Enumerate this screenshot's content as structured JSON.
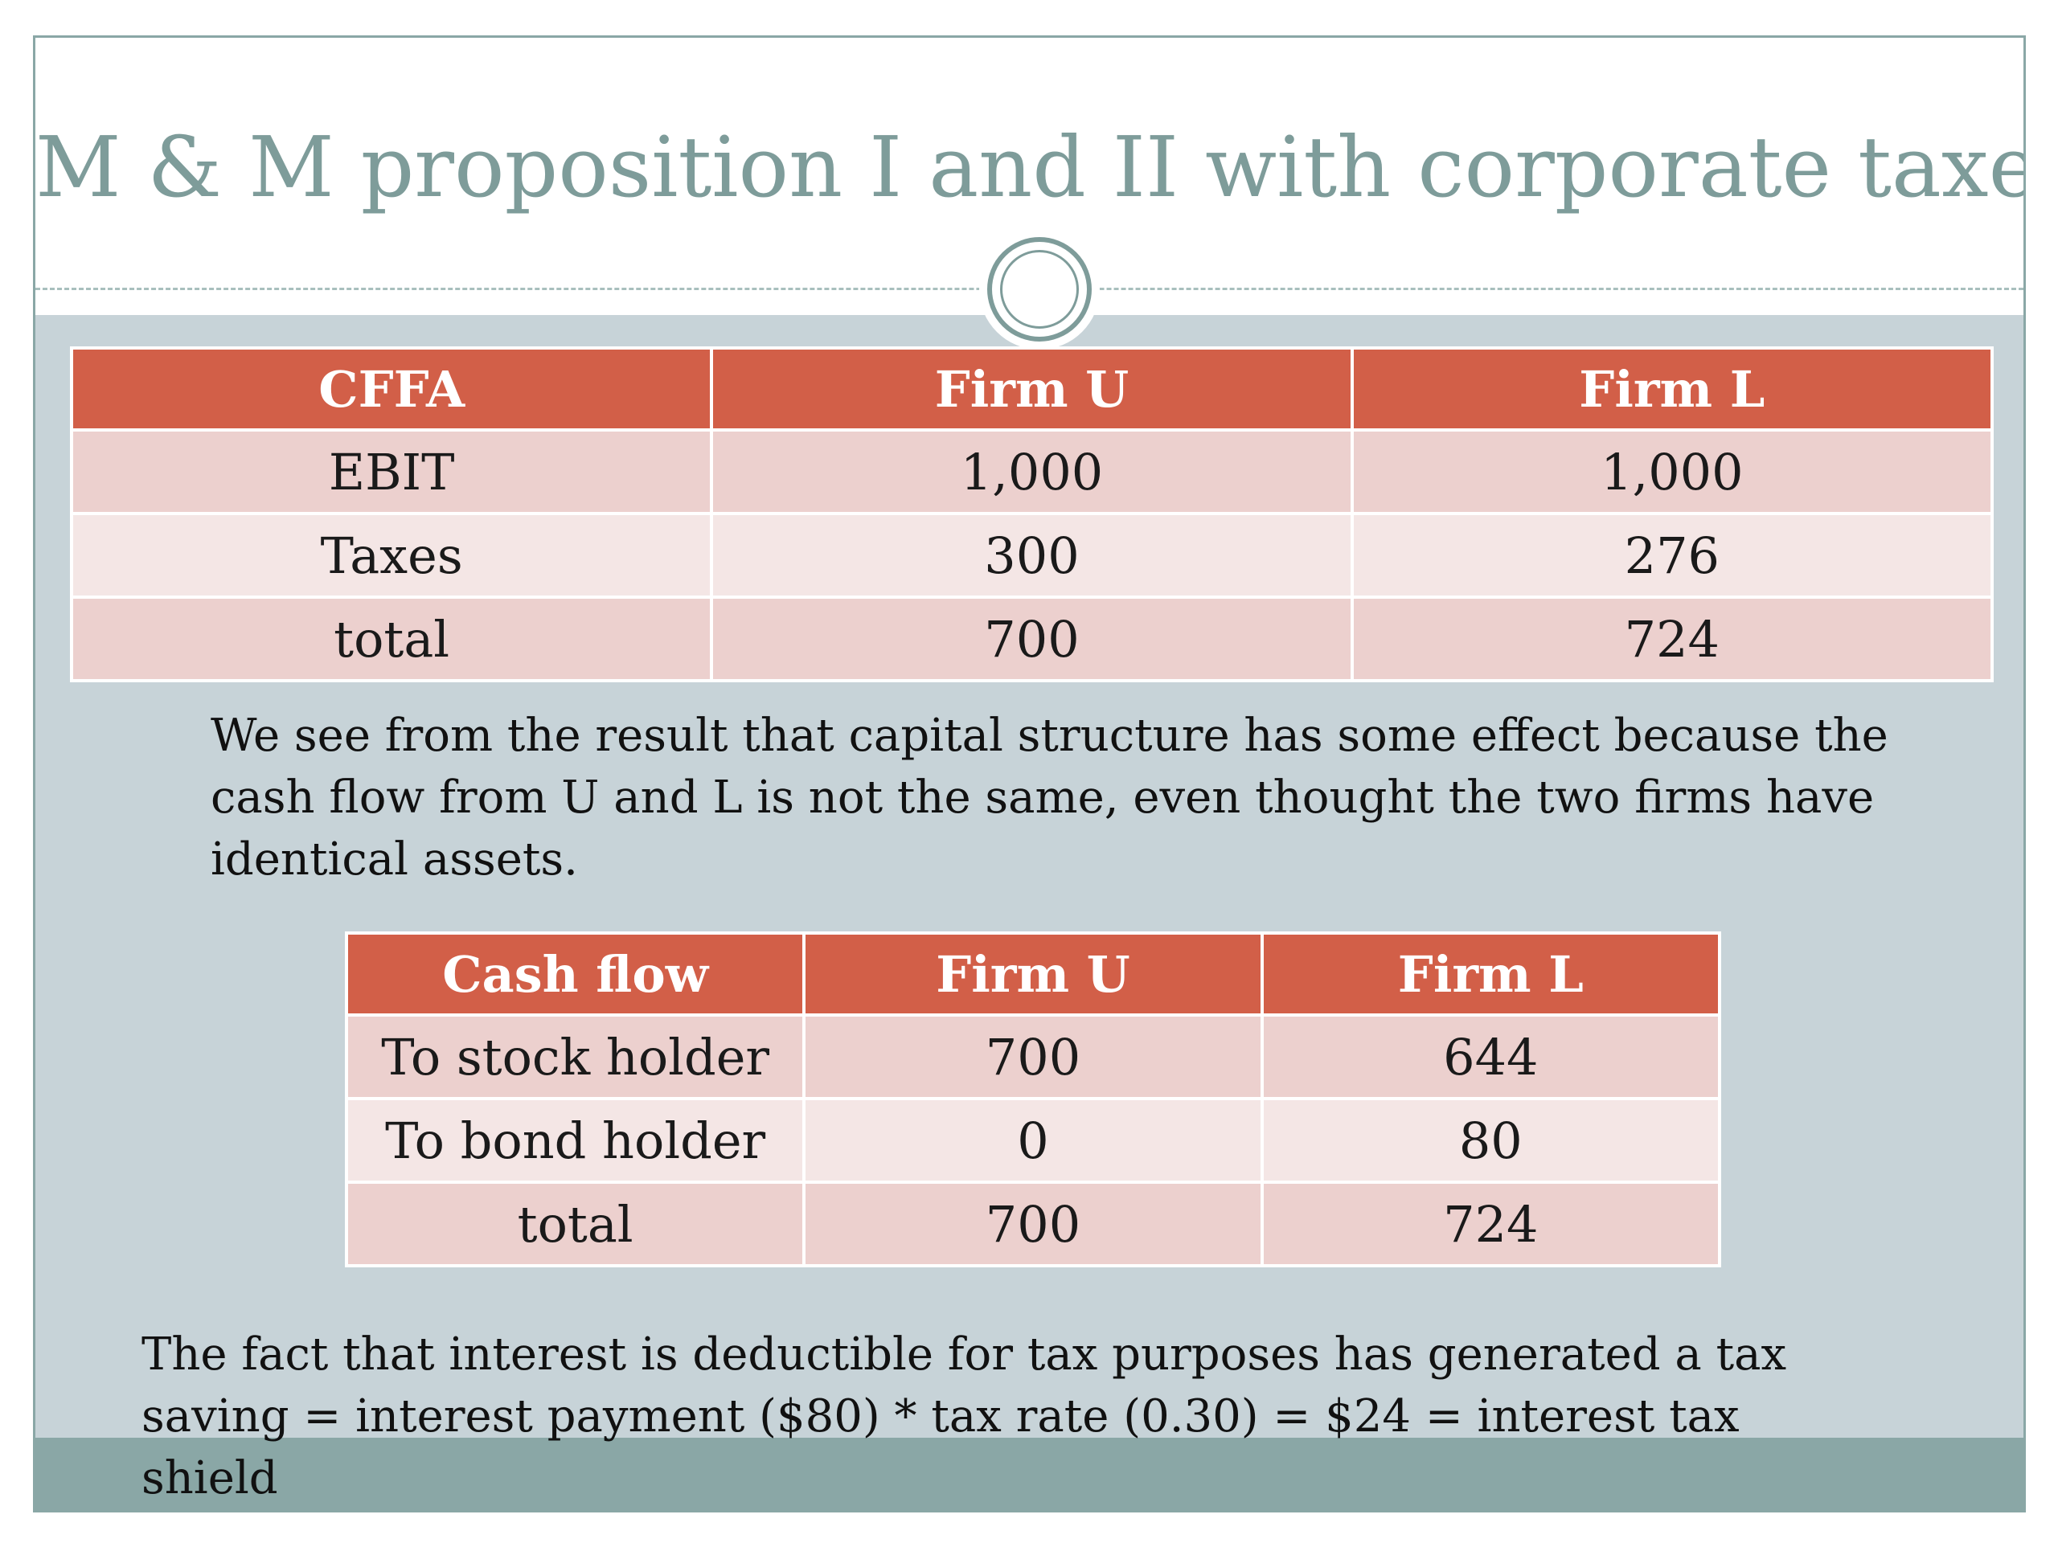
{
  "slide": {
    "title": "M & M proposition I and II with corporate taxes"
  },
  "cffa_table": {
    "headers": [
      "CFFA",
      "Firm U",
      "Firm L"
    ],
    "rows": [
      [
        "EBIT",
        "1,000",
        "1,000"
      ],
      [
        "Taxes",
        "300",
        "276"
      ],
      [
        "total",
        "700",
        "724"
      ]
    ]
  },
  "observation": "We see from the result that capital structure has some effect because the cash flow from U and L is not the same, even thought the two firms have identical assets.",
  "cashflow_table": {
    "headers": [
      "Cash flow",
      "Firm U",
      "Firm L"
    ],
    "rows": [
      [
        "To stock holder",
        "700",
        "644"
      ],
      [
        "To bond holder",
        "0",
        "80"
      ],
      [
        "total",
        "700",
        "724"
      ]
    ]
  },
  "tax_shield_note": "The fact that interest is deductible for tax purposes has generated a tax saving = interest payment ($80) * tax rate (0.30) = $24 = interest tax shield",
  "colors": {
    "title": "#7e9c9a",
    "table_header": "#d25f48",
    "row_odd": "#ecd0ce",
    "row_even": "#f4e6e5",
    "slide_background": "#c7d3d8",
    "footer_band": "#8aa7a6"
  }
}
